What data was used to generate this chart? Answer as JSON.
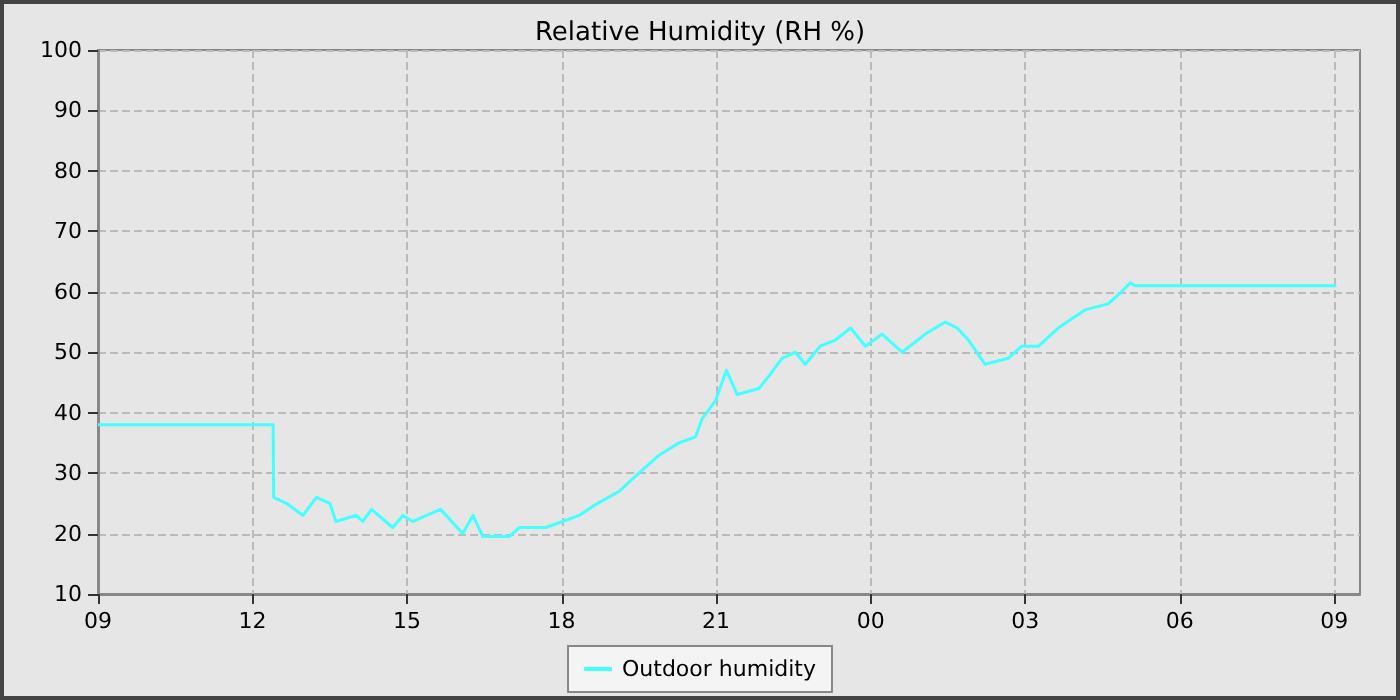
{
  "chart_data": {
    "type": "line",
    "title": "Relative Humidity (RH %)",
    "xlim": [
      9,
      33.5
    ],
    "xticks": [
      {
        "value": 9,
        "label": "09"
      },
      {
        "value": 12,
        "label": "12"
      },
      {
        "value": 15,
        "label": "15"
      },
      {
        "value": 18,
        "label": "18"
      },
      {
        "value": 21,
        "label": "21"
      },
      {
        "value": 24,
        "label": "00"
      },
      {
        "value": 27,
        "label": "03"
      },
      {
        "value": 30,
        "label": "06"
      },
      {
        "value": 33,
        "label": "09"
      }
    ],
    "ylim": [
      10,
      100
    ],
    "yticks": [
      10,
      20,
      30,
      40,
      50,
      60,
      70,
      80,
      90,
      100
    ],
    "grid": true,
    "legend": "bottom",
    "marker": "none",
    "line_style": "solid",
    "series": [
      {
        "name": "Outdoor humidity",
        "color": "#44ffff",
        "x": [
          9,
          12.4,
          12.41,
          12.66,
          12.98,
          13.24,
          13.5,
          13.62,
          14.01,
          14.14,
          14.31,
          14.72,
          14.92,
          15.11,
          15.65,
          16.08,
          16.28,
          16.47,
          16.98,
          17.18,
          17.69,
          18.02,
          18.34,
          18.7,
          19.12,
          19.5,
          19.9,
          20.28,
          20.6,
          20.73,
          20.99,
          21.2,
          21.41,
          21.83,
          22.02,
          22.28,
          22.54,
          22.73,
          23.02,
          23.31,
          23.61,
          23.9,
          24.22,
          24.61,
          25.06,
          25.45,
          25.68,
          25.9,
          26.22,
          26.67,
          26.93,
          27.26,
          27.64,
          28.16,
          28.61,
          28.87,
          29.04,
          29.13,
          33.04
        ],
        "values": [
          38,
          38,
          26,
          25,
          23,
          26,
          25,
          22,
          23,
          22,
          24,
          21,
          23,
          22,
          24,
          20,
          23,
          19.5,
          19.5,
          21,
          21,
          22,
          23,
          25,
          27,
          30,
          33,
          35,
          36,
          39,
          42,
          47,
          43,
          44,
          46,
          49,
          50,
          48,
          51,
          52,
          54,
          51,
          53,
          50,
          53,
          55,
          54,
          52,
          48,
          49,
          51,
          51,
          54,
          57,
          58,
          60,
          61.5,
          61,
          61
        ]
      }
    ]
  }
}
